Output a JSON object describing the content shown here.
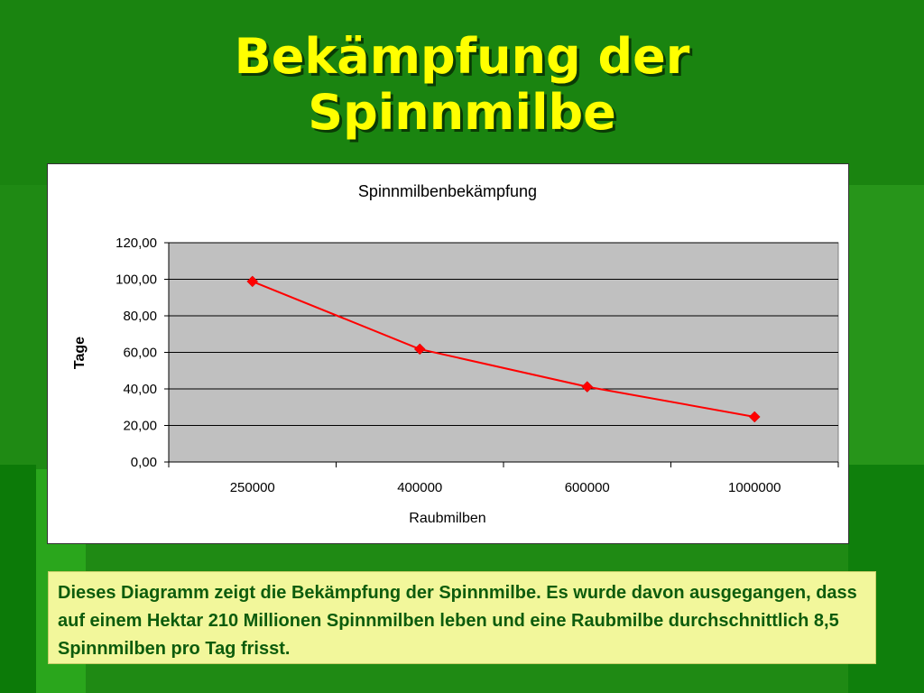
{
  "slide": {
    "title": "Bekämpfung der Spinnmilbe",
    "caption": "Dieses Diagramm zeigt die Bekämpfung der Spinnmilbe. Es wurde davon ausgegangen, dass auf einem Hektar 210 Millionen Spinnmilben leben und eine Raubmilbe durchschnittlich 8,5 Spinnmilben pro Tag frisst."
  },
  "colors": {
    "background": "#1f8a14",
    "title": "#ffff00",
    "caption_bg": "#f2f79b",
    "caption_text": "#0d5c0d",
    "plot_area": "#c0c0c0",
    "series_line": "#ff0000"
  },
  "chart_data": {
    "type": "line",
    "title": "Spinnmilbenbekämpfung",
    "xlabel": "Raubmilben",
    "ylabel": "Tage",
    "categories": [
      "250000",
      "400000",
      "600000",
      "1000000"
    ],
    "series": [
      {
        "values": [
          98.82,
          61.76,
          41.18,
          24.71
        ]
      }
    ],
    "ylim": [
      0,
      120
    ],
    "yticks": [
      "0,00",
      "20,00",
      "40,00",
      "60,00",
      "80,00",
      "100,00",
      "120,00"
    ],
    "grid": true,
    "legend": "none",
    "marker": "diamond"
  }
}
